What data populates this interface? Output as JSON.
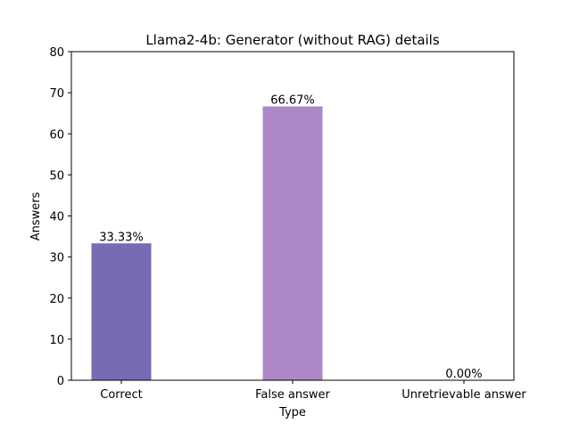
{
  "chart_data": {
    "type": "bar",
    "title": "Llama2-4b: Generator (without RAG) details",
    "xlabel": "Type",
    "ylabel": "Answers",
    "ylim": [
      0,
      80
    ],
    "yticks": [
      0,
      10,
      20,
      30,
      40,
      50,
      60,
      70,
      80
    ],
    "grid": false,
    "categories": [
      "Correct",
      "False answer",
      "Unretrievable answer"
    ],
    "values": [
      33.33,
      66.67,
      0.0
    ],
    "bar_labels": [
      "33.33%",
      "66.67%",
      "0.00%"
    ],
    "colors": [
      "#776bb6",
      "#ad88c6",
      "#e1afd1"
    ]
  }
}
